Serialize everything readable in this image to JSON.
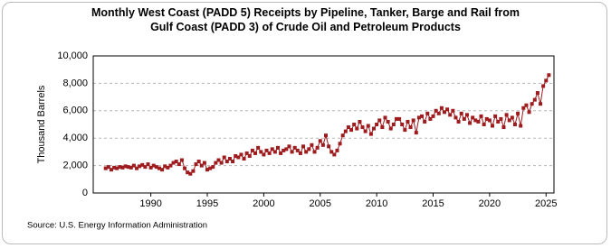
{
  "chart_data": {
    "type": "line",
    "title": "Monthly West Coast (PADD 5) Receipts by Pipeline, Tanker, Barge and Rail from Gulf Coast (PADD 3) of Crude Oil and Petroleum Products",
    "y_label": "Thousand Barrels",
    "source": "Source: U.S. Energy Information Administration",
    "xlim": [
      1984.9,
      2025.7
    ],
    "xticks": [
      1990,
      1995,
      2000,
      2005,
      2010,
      2015,
      2020,
      2025
    ],
    "ylim": [
      0,
      10000
    ],
    "yticks": [
      0,
      {
        "value": 2000,
        "label": "2,000"
      },
      {
        "value": 4000,
        "label": "4,000"
      },
      {
        "value": 6000,
        "label": "6,000"
      },
      {
        "value": 8000,
        "label": "8,000"
      },
      {
        "value": 10000,
        "label": "10,000"
      }
    ],
    "grid": true,
    "series": [
      {
        "color": "#9e1b1e",
        "x": [
          1986,
          1986.25,
          1986.5,
          1986.75,
          1987,
          1987.25,
          1987.5,
          1987.75,
          1988,
          1988.25,
          1988.5,
          1988.75,
          1989,
          1989.25,
          1989.5,
          1989.75,
          1990,
          1990.25,
          1990.5,
          1990.75,
          1991,
          1991.25,
          1991.5,
          1991.75,
          1992,
          1992.25,
          1992.5,
          1992.75,
          1993,
          1993.25,
          1993.5,
          1993.75,
          1994,
          1994.25,
          1994.5,
          1994.75,
          1995,
          1995.25,
          1995.5,
          1995.75,
          1996,
          1996.25,
          1996.5,
          1996.75,
          1997,
          1997.25,
          1997.5,
          1997.75,
          1998,
          1998.25,
          1998.5,
          1998.75,
          1999,
          1999.25,
          1999.5,
          1999.75,
          2000,
          2000.25,
          2000.5,
          2000.75,
          2001,
          2001.25,
          2001.5,
          2001.75,
          2002,
          2002.25,
          2002.5,
          2002.75,
          2003,
          2003.25,
          2003.5,
          2003.75,
          2004,
          2004.25,
          2004.5,
          2004.75,
          2005,
          2005.25,
          2005.5,
          2005.75,
          2006,
          2006.25,
          2006.5,
          2006.75,
          2007,
          2007.25,
          2007.5,
          2007.75,
          2008,
          2008.25,
          2008.5,
          2008.75,
          2009,
          2009.25,
          2009.5,
          2009.75,
          2010,
          2010.25,
          2010.5,
          2010.75,
          2011,
          2011.25,
          2011.5,
          2011.75,
          2012,
          2012.25,
          2012.5,
          2012.75,
          2013,
          2013.25,
          2013.5,
          2013.75,
          2014,
          2014.25,
          2014.5,
          2014.75,
          2015,
          2015.25,
          2015.5,
          2015.75,
          2016,
          2016.25,
          2016.5,
          2016.75,
          2017,
          2017.25,
          2017.5,
          2017.75,
          2018,
          2018.25,
          2018.5,
          2018.75,
          2019,
          2019.25,
          2019.5,
          2019.75,
          2020,
          2020.25,
          2020.5,
          2020.75,
          2021,
          2021.25,
          2021.5,
          2021.75,
          2022,
          2022.25,
          2022.5,
          2022.75,
          2023,
          2023.25,
          2023.5,
          2023.75,
          2024,
          2024.25,
          2024.5,
          2024.75,
          2025,
          2025.25
        ],
        "values": [
          1800,
          1900,
          1700,
          1850,
          1800,
          1900,
          1850,
          1950,
          1900,
          1850,
          2000,
          1800,
          1950,
          2050,
          1900,
          2100,
          1850,
          2000,
          1900,
          1800,
          1700,
          1950,
          1850,
          2000,
          2200,
          2300,
          2100,
          2400,
          1800,
          1500,
          1400,
          1600,
          2100,
          2300,
          2000,
          2200,
          1700,
          1800,
          1900,
          2200,
          2400,
          2200,
          2600,
          2300,
          2500,
          2300,
          2700,
          2600,
          2800,
          2500,
          2900,
          2700,
          3100,
          2900,
          3300,
          3000,
          2800,
          3100,
          2900,
          3200,
          3000,
          3300,
          2900,
          3100,
          3200,
          3400,
          3000,
          3300,
          3100,
          2900,
          3400,
          3000,
          3200,
          3500,
          3000,
          3300,
          3800,
          3500,
          4200,
          3400,
          3000,
          2800,
          3100,
          3600,
          4200,
          4500,
          4800,
          4600,
          5000,
          4700,
          5200,
          4800,
          4500,
          4900,
          4300,
          4700,
          5000,
          5300,
          4800,
          5500,
          5200,
          4700,
          5000,
          5400,
          5400,
          5000,
          4600,
          5200,
          4800,
          5300,
          4400,
          5500,
          5600,
          5200,
          5800,
          5400,
          5600,
          6000,
          5800,
          6200,
          5900,
          6100,
          5700,
          6000,
          5500,
          5200,
          5800,
          5400,
          5700,
          5100,
          5500,
          5300,
          5200,
          5600,
          5000,
          5400,
          5300,
          4900,
          5600,
          5200,
          5400,
          4800,
          5700,
          5300,
          5500,
          5000,
          5800,
          4900,
          6200,
          6400,
          5900,
          6500,
          6800,
          7300,
          6500,
          7800,
          8200,
          8600
        ]
      }
    ]
  }
}
